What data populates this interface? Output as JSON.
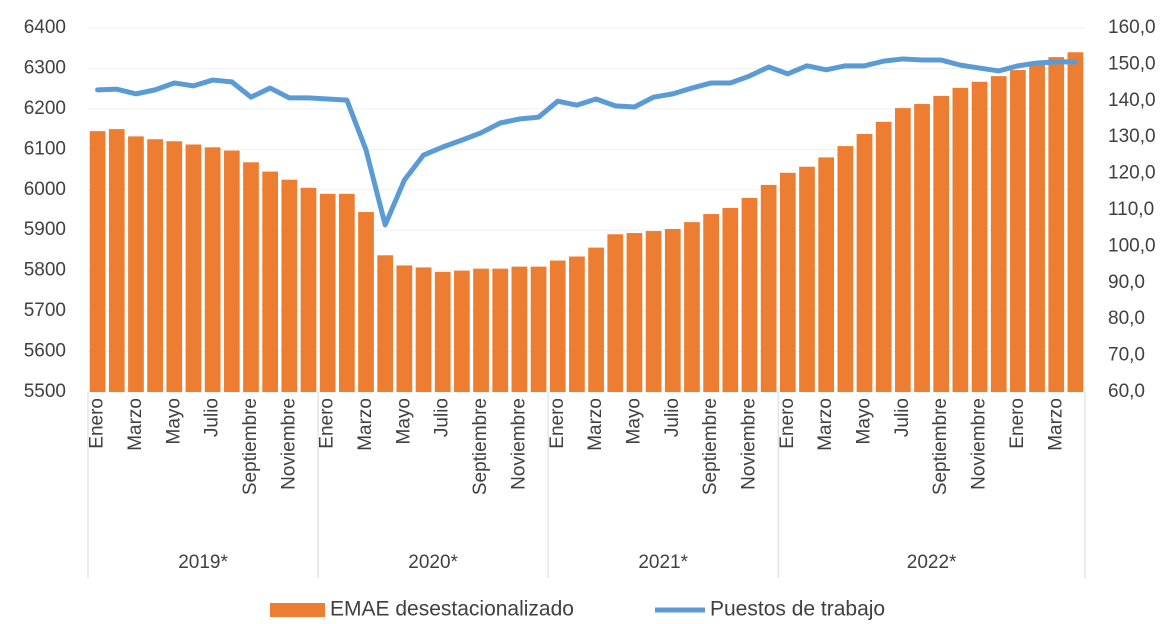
{
  "chart_data": {
    "type": "bar-line",
    "categories": [
      "Enero",
      null,
      "Marzo",
      null,
      "Mayo",
      null,
      "Julio",
      null,
      "Septiembre",
      null,
      "Noviembre",
      null,
      "Enero",
      null,
      "Marzo",
      null,
      "Mayo",
      null,
      "Julio",
      null,
      "Septiembre",
      null,
      "Noviembre",
      null,
      "Enero",
      null,
      "Marzo",
      null,
      "Mayo",
      null,
      "Julio",
      null,
      "Septiembre",
      null,
      "Noviembre",
      null,
      "Enero",
      null,
      "Marzo",
      null,
      "Mayo",
      null,
      "Julio",
      null,
      "Septiembre",
      null,
      "Noviembre",
      null,
      "Enero",
      null,
      "Marzo",
      null
    ],
    "groups": [
      {
        "label": "2019*",
        "span": 12
      },
      {
        "label": "2020*",
        "span": 12
      },
      {
        "label": "2021*",
        "span": 12
      },
      {
        "label": "2022*",
        "span": 16
      }
    ],
    "series": [
      {
        "name": "EMAE desestacionalizado",
        "type": "bar",
        "color": "#ed7d31",
        "values": [
          6145,
          6150,
          6132,
          6125,
          6120,
          6112,
          6105,
          6097,
          6068,
          6045,
          6025,
          6005,
          5990,
          5990,
          5945,
          5838,
          5813,
          5808,
          5797,
          5800,
          5805,
          5805,
          5810,
          5810,
          5825,
          5835,
          5857,
          5890,
          5893,
          5898,
          5903,
          5920,
          5940,
          5955,
          5980,
          6012,
          6042,
          6057,
          6080,
          6108,
          6138,
          6168,
          6202,
          6212,
          6232,
          6252,
          6267,
          6281,
          6296,
          6313,
          6328,
          6340
        ]
      },
      {
        "name": "Puestos de trabajo",
        "type": "line",
        "axis": "y2",
        "color": "#5b9bd5",
        "values": [
          143.0,
          143.2,
          141.9,
          143.0,
          144.9,
          144.1,
          145.7,
          145.2,
          141.0,
          143.5,
          140.8,
          140.8,
          140.5,
          140.2,
          126.5,
          105.9,
          118.2,
          125.1,
          127.3,
          129.2,
          131.2,
          133.9,
          135.0,
          135.5,
          139.9,
          138.8,
          140.5,
          138.6,
          138.3,
          141.0,
          141.9,
          143.5,
          144.9,
          144.9,
          146.8,
          149.3,
          147.4,
          149.6,
          148.5,
          149.6,
          149.6,
          150.9,
          151.5,
          151.2,
          151.2,
          149.8,
          149.0,
          148.2,
          149.6,
          150.4,
          150.7,
          150.7
        ]
      }
    ],
    "ylim": [
      5500,
      6400
    ],
    "yticks": [
      5500,
      5600,
      5700,
      5800,
      5900,
      6000,
      6100,
      6200,
      6300,
      6400
    ],
    "y2lim": [
      60,
      160
    ],
    "y2ticks": [
      {
        "value": 60,
        "label": "60,0"
      },
      {
        "value": 70,
        "label": "70,0"
      },
      {
        "value": 80,
        "label": "80,0"
      },
      {
        "value": 90,
        "label": "90,0"
      },
      {
        "value": 100,
        "label": "100,0"
      },
      {
        "value": 110,
        "label": "110,0"
      },
      {
        "value": 120,
        "label": "120,0"
      },
      {
        "value": 130,
        "label": "130,0"
      },
      {
        "value": 140,
        "label": "140,0"
      },
      {
        "value": 150,
        "label": "150,0"
      },
      {
        "value": 160,
        "label": "160,0"
      }
    ],
    "grid": true,
    "legend": "bottom"
  }
}
